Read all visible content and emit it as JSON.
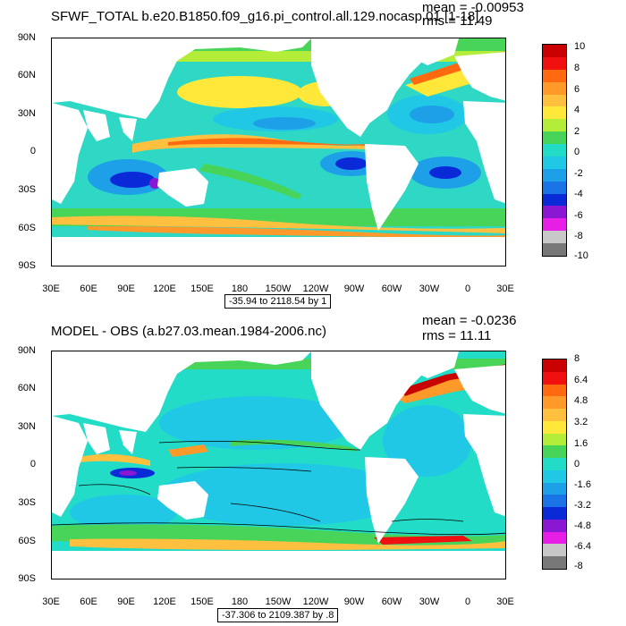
{
  "panels": [
    {
      "title": "SFWF_TOTAL b.e20.B1850.f09_g16.pi_control.all.129.nocasp.01 [1-18]",
      "mean": "mean = -0.00953",
      "rms": "rms = 11.49",
      "range_label": "-35.94 to 2118.54 by 1",
      "y_labels": [
        "90N",
        "60N",
        "30N",
        "0",
        "30S",
        "60S",
        "90S"
      ],
      "x_labels": [
        "30E",
        "60E",
        "90E",
        "120E",
        "150E",
        "180",
        "150W",
        "120W",
        "90W",
        "60W",
        "30W",
        "0",
        "30E"
      ],
      "colorbar_labels": [
        "10",
        "8",
        "6",
        "4",
        "2",
        "0",
        "-2",
        "-4",
        "-6",
        "-8",
        "-10"
      ],
      "colorbar_colors": [
        "#c80000",
        "#f01010",
        "#ff6a10",
        "#ff9a2a",
        "#ffc040",
        "#ffe83a",
        "#b4ec3a",
        "#48d458",
        "#22dcc8",
        "#20c8e6",
        "#1ea0e8",
        "#1a74e6",
        "#0a2ad8",
        "#8a18d2",
        "#e61ee6",
        "#c8c8c8",
        "#787878"
      ]
    },
    {
      "title": "MODEL - OBS (a.b27.03.mean.1984-2006.nc)",
      "mean": "mean = -0.0236",
      "rms": "rms = 11.11",
      "range_label": "-37.306 to 2109.387 by .8",
      "y_labels": [
        "90N",
        "60N",
        "30N",
        "0",
        "30S",
        "60S",
        "90S"
      ],
      "x_labels": [
        "30E",
        "60E",
        "90E",
        "120E",
        "150E",
        "180",
        "150W",
        "120W",
        "90W",
        "60W",
        "30W",
        "0",
        "30E"
      ],
      "colorbar_labels": [
        "8",
        "6.4",
        "4.8",
        "3.2",
        "1.6",
        "0",
        "-1.6",
        "-3.2",
        "-4.8",
        "-6.4",
        "-8"
      ],
      "colorbar_colors": [
        "#c80000",
        "#f01010",
        "#ff6a10",
        "#ff9a2a",
        "#ffc040",
        "#ffe83a",
        "#b4ec3a",
        "#48d458",
        "#22dcc8",
        "#20c8e6",
        "#1ea0e8",
        "#1a74e6",
        "#0a2ad8",
        "#8a18d2",
        "#e61ee6",
        "#c8c8c8",
        "#787878"
      ]
    }
  ]
}
